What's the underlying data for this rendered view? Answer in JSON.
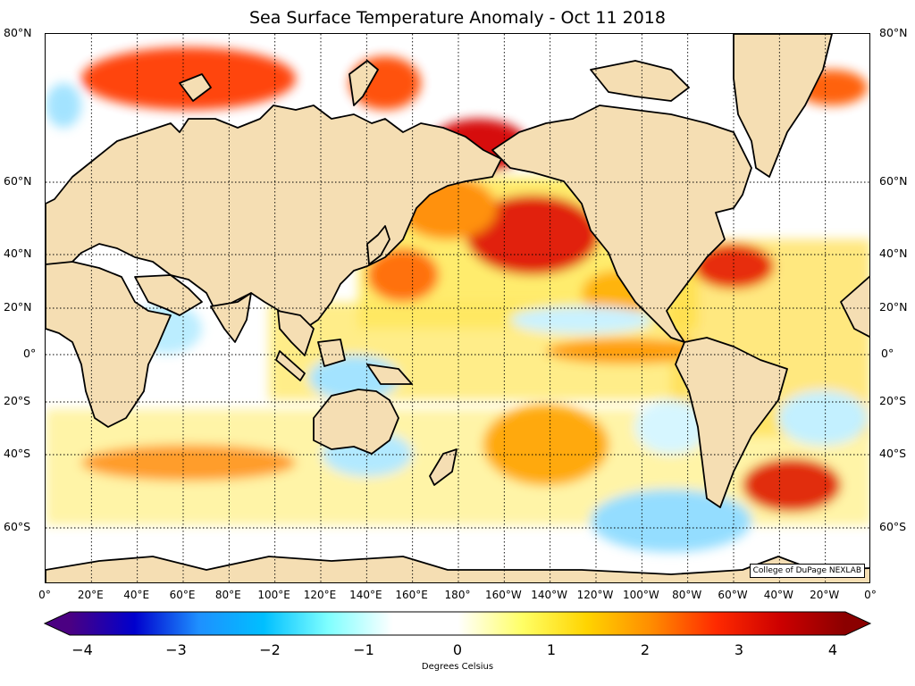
{
  "title": "Sea Surface Temperature Anomaly - Oct 11 2018",
  "credit": "College of DuPage NEXLAB",
  "lat_labels": [
    "80°N",
    "60°N",
    "40°N",
    "20°N",
    "0°",
    "20°S",
    "40°S",
    "60°S"
  ],
  "lon_labels": [
    "0°",
    "20°E",
    "40°E",
    "60°E",
    "80°E",
    "100°E",
    "120°E",
    "140°E",
    "160°E",
    "180°",
    "160°W",
    "140°W",
    "120°W",
    "100°W",
    "80°W",
    "60°W",
    "40°W",
    "20°W",
    "0°"
  ],
  "colorbar": {
    "label": "Degrees Celsius",
    "ticks": [
      "−4",
      "−3",
      "−2",
      "−1",
      "0",
      "1",
      "2",
      "3",
      "4"
    ],
    "min": -4,
    "max": 4,
    "colors": [
      "#4b0082",
      "#0000cd",
      "#1e90ff",
      "#00bfff",
      "#7fffff",
      "#ffffff",
      "#ffffff",
      "#ffff66",
      "#ffd400",
      "#ff8c00",
      "#ff2a00",
      "#cc0000",
      "#8b0000"
    ]
  },
  "map": {
    "land_color": "#f5deb3",
    "ocean_color": "#ffffff",
    "warm_color": "#ffd400",
    "hot_color": "#e02000",
    "cool_color": "#aee8ff",
    "cold_color": "#3d8bff"
  }
}
